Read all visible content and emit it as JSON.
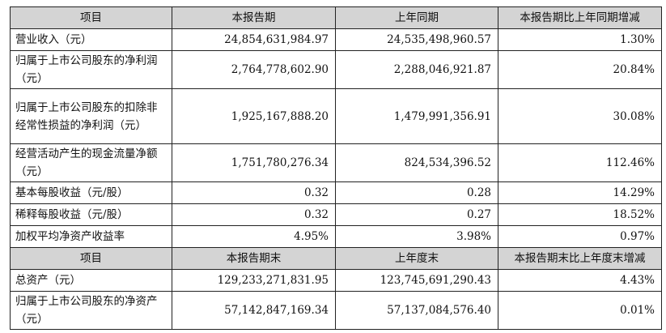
{
  "headers1": [
    "项目",
    "本报告期",
    "上年同期",
    "本报告期比上年同期增减"
  ],
  "rows1": [
    {
      "label": "营业收入（元）",
      "current": "24,854,631,984.97",
      "prior": "24,535,498,960.57",
      "change": "1.30%"
    },
    {
      "label": "归属于上市公司股东的净利润（元）",
      "current": "2,764,778,602.90",
      "prior": "2,288,046,921.87",
      "change": "20.84%"
    },
    {
      "label": "归属于上市公司股东的扣除非经常性损益的净利润（元）",
      "current": "1,925,167,888.20",
      "prior": "1,479,991,356.91",
      "change": "30.08%"
    },
    {
      "label": "经营活动产生的现金流量净额（元）",
      "current": "1,751,780,276.34",
      "prior": "824,534,396.52",
      "change": "112.46%"
    },
    {
      "label": "基本每股收益（元/股）",
      "current": "0.32",
      "prior": "0.28",
      "change": "14.29%"
    },
    {
      "label": "稀释每股收益（元/股）",
      "current": "0.32",
      "prior": "0.27",
      "change": "18.52%"
    },
    {
      "label": "加权平均净资产收益率",
      "current": "4.95%",
      "prior": "3.98%",
      "change": "0.97%"
    }
  ],
  "headers2": [
    "项目",
    "本报告期末",
    "上年度末",
    "本报告期末比上年度末增减"
  ],
  "rows2": [
    {
      "label": "总资产（元）",
      "current": "129,233,271,831.95",
      "prior": "123,745,691,290.43",
      "change": "4.43%"
    },
    {
      "label": "归属于上市公司股东的净资产（元）",
      "current": "57,142,847,169.34",
      "prior": "57,137,084,576.40",
      "change": "0.01%"
    }
  ]
}
